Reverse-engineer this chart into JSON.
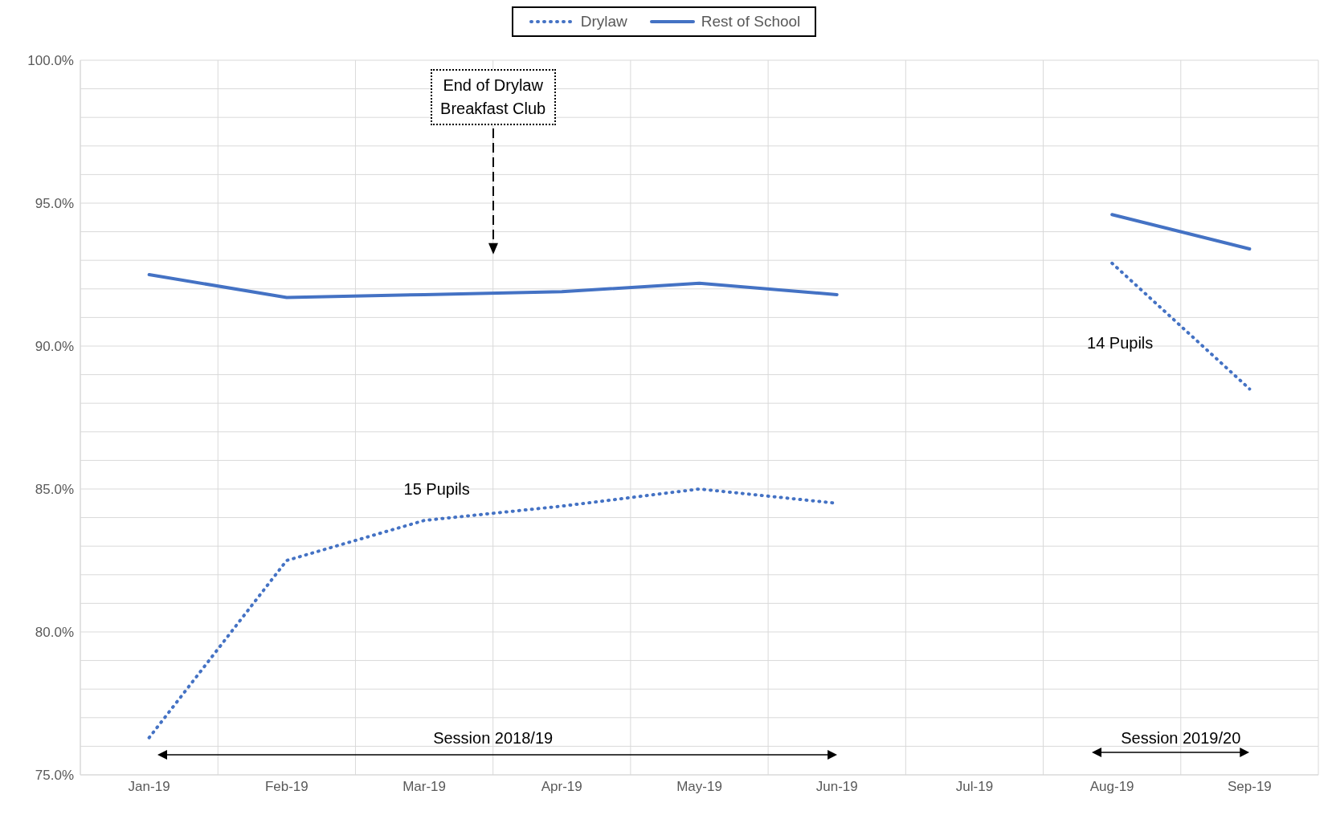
{
  "chart_data": {
    "type": "line",
    "categories": [
      "Jan-19",
      "Feb-19",
      "Mar-19",
      "Apr-19",
      "May-19",
      "Jun-19",
      "Jul-19",
      "Aug-19",
      "Sep-19"
    ],
    "series": [
      {
        "name": "Drylaw",
        "color": "#4472c4",
        "line_style": "dotted",
        "values": [
          76.3,
          82.5,
          83.9,
          84.4,
          85.0,
          84.5,
          null,
          92.9,
          88.5
        ]
      },
      {
        "name": "Rest of School",
        "color": "#4472c4",
        "line_style": "solid",
        "values": [
          92.5,
          91.7,
          91.8,
          91.9,
          92.2,
          91.8,
          null,
          94.6,
          93.4
        ]
      }
    ],
    "ylim": [
      75,
      100
    ],
    "yticks": [
      {
        "value": 75,
        "label": "75.0%"
      },
      {
        "value": 76,
        "label": null
      },
      {
        "value": 77,
        "label": null
      },
      {
        "value": 78,
        "label": null
      },
      {
        "value": 79,
        "label": null
      },
      {
        "value": 80,
        "label": "80.0%"
      },
      {
        "value": 81,
        "label": null
      },
      {
        "value": 82,
        "label": null
      },
      {
        "value": 83,
        "label": null
      },
      {
        "value": 84,
        "label": null
      },
      {
        "value": 85,
        "label": "85.0%"
      },
      {
        "value": 86,
        "label": null
      },
      {
        "value": 87,
        "label": null
      },
      {
        "value": 88,
        "label": null
      },
      {
        "value": 89,
        "label": null
      },
      {
        "value": 90,
        "label": "90.0%"
      },
      {
        "value": 91,
        "label": null
      },
      {
        "value": 92,
        "label": null
      },
      {
        "value": 93,
        "label": null
      },
      {
        "value": 94,
        "label": null
      },
      {
        "value": 95,
        "label": "95.0%"
      },
      {
        "value": 96,
        "label": null
      },
      {
        "value": 97,
        "label": null
      },
      {
        "value": 98,
        "label": null
      },
      {
        "value": 99,
        "label": null
      },
      {
        "value": 100,
        "label": "100.0%"
      }
    ],
    "grid": true,
    "legend": "top",
    "marker": "none",
    "annotations": [
      "End of Drylaw Breakfast Club",
      "15 Pupils",
      "14 Pupils",
      "Session 2018/19",
      "Session 2019/20"
    ]
  }
}
